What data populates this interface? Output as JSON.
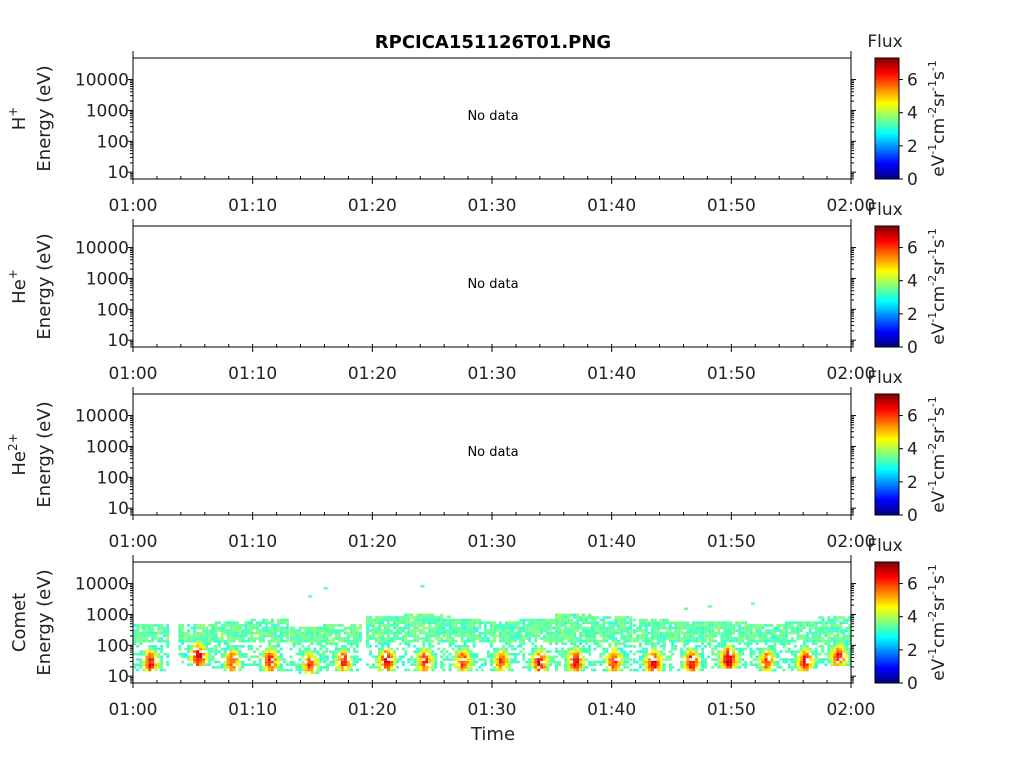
{
  "title": "RPCICA151126T01.PNG",
  "x_ticks": [
    "01:00",
    "01:10",
    "01:20",
    "01:30",
    "01:40",
    "01:50",
    "02:00"
  ],
  "y_ticks": [
    "10",
    "100",
    "1000",
    "10000"
  ],
  "no_data_text": "No data",
  "x_axis_label": "Time",
  "colorbar": {
    "title": "Flux",
    "ticks": [
      "0",
      "2",
      "4",
      "6"
    ],
    "unit_base": [
      "eV",
      "cm",
      "sr",
      "s"
    ],
    "unit_exps": [
      "-1",
      "-2",
      "-1",
      "-1"
    ]
  },
  "panels": [
    {
      "species_base": "H",
      "species_sup": "+",
      "energy_label": "Energy (eV)",
      "has_data": false
    },
    {
      "species_base": "He",
      "species_sup": "+",
      "energy_label": "Energy (eV)",
      "has_data": false
    },
    {
      "species_base": "He",
      "species_sup": "2+",
      "energy_label": "Energy (eV)",
      "has_data": false
    },
    {
      "species_base": "Comet",
      "species_sup": "",
      "energy_label": "Energy (eV)",
      "has_data": true
    }
  ],
  "colors": {
    "jet": [
      "#00007f",
      "#0000ff",
      "#007fff",
      "#00ffff",
      "#7fff7f",
      "#ffff00",
      "#ff7f00",
      "#ff0000",
      "#7f0000"
    ]
  },
  "chart_data": {
    "type": "heatmap",
    "title": "RPCICA151126T01.PNG",
    "xlabel": "Time",
    "ylabel": "Energy (eV)",
    "x_range": [
      "01:00",
      "02:00"
    ],
    "y_range": [
      6,
      50000
    ],
    "y_scale": "log",
    "color_range": [
      0,
      7.3
    ],
    "comet_bursts": [
      {
        "t_min": 1.5,
        "e_low": 20,
        "e_high": 420,
        "peak": 6.7
      },
      {
        "t_min": 5.5,
        "e_low": 32,
        "e_high": 460,
        "peak": 7.1
      },
      {
        "t_min": 8.3,
        "e_low": 22,
        "e_high": 520,
        "peak": 6.4
      },
      {
        "t_min": 11.5,
        "e_low": 22,
        "e_high": 650,
        "peak": 6.7
      },
      {
        "t_min": 14.8,
        "e_low": 18,
        "e_high": 380,
        "peak": 6.3
      },
      {
        "t_min": 17.6,
        "e_low": 22,
        "e_high": 450,
        "peak": 6.4
      },
      {
        "t_min": 21.2,
        "e_low": 22,
        "e_high": 780,
        "peak": 6.9
      },
      {
        "t_min": 24.4,
        "e_low": 22,
        "e_high": 900,
        "peak": 6.6
      },
      {
        "t_min": 27.6,
        "e_low": 22,
        "e_high": 600,
        "peak": 6.4
      },
      {
        "t_min": 30.8,
        "e_low": 22,
        "e_high": 500,
        "peak": 6.3
      },
      {
        "t_min": 34.0,
        "e_low": 20,
        "e_high": 700,
        "peak": 6.9
      },
      {
        "t_min": 37.0,
        "e_low": 22,
        "e_high": 900,
        "peak": 6.8
      },
      {
        "t_min": 40.2,
        "e_low": 22,
        "e_high": 850,
        "peak": 6.6
      },
      {
        "t_min": 43.5,
        "e_low": 20,
        "e_high": 700,
        "peak": 7.0
      },
      {
        "t_min": 46.7,
        "e_low": 20,
        "e_high": 550,
        "peak": 6.9
      },
      {
        "t_min": 49.8,
        "e_low": 25,
        "e_high": 500,
        "peak": 7.3
      },
      {
        "t_min": 53.0,
        "e_low": 22,
        "e_high": 450,
        "peak": 6.3
      },
      {
        "t_min": 56.2,
        "e_low": 22,
        "e_high": 550,
        "peak": 6.8
      },
      {
        "t_min": 59.0,
        "e_low": 30,
        "e_high": 800,
        "peak": 6.7
      }
    ],
    "comet_sparse_points": [
      {
        "t_min": 16.1,
        "energy": 7200,
        "value": 3.5
      },
      {
        "t_min": 14.8,
        "energy": 3900,
        "value": 3.5
      },
      {
        "t_min": 24.2,
        "energy": 8400,
        "value": 3.5
      },
      {
        "t_min": 46.2,
        "energy": 1550,
        "value": 3.5
      },
      {
        "t_min": 48.2,
        "energy": 1850,
        "value": 3.5
      },
      {
        "t_min": 51.8,
        "energy": 2300,
        "value": 3.5
      },
      {
        "t_min": 38.2,
        "energy": 900,
        "value": 3.6
      },
      {
        "t_min": 26.4,
        "energy": 850,
        "value": 3.6
      }
    ]
  }
}
